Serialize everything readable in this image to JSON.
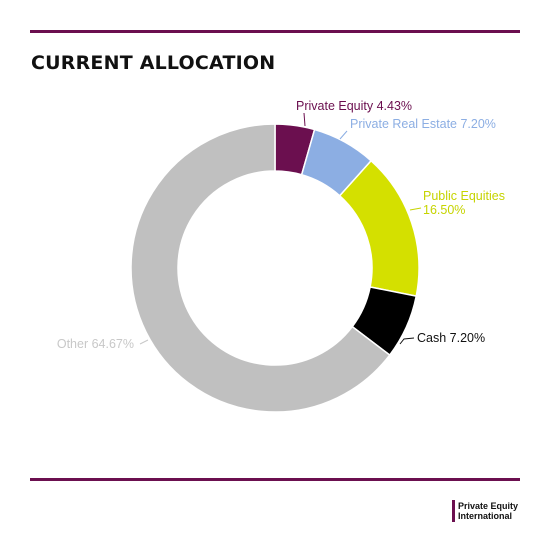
{
  "page": {
    "title": "CURRENT ALLOCATION"
  },
  "logo": {
    "line1": "Private Equity",
    "line2": "International"
  },
  "chart_data": {
    "type": "pie",
    "variant": "donut",
    "title": "CURRENT ALLOCATION",
    "slices": [
      {
        "name": "Private Equity",
        "value": 4.43,
        "label": "Private Equity 4.43%",
        "color": "#6b0f4f",
        "label_color": "#6b0f4f"
      },
      {
        "name": "Private Real Estate",
        "value": 7.2,
        "label": "Private Real Estate 7.20%",
        "color": "#8caee3",
        "label_color": "#8caee3"
      },
      {
        "name": "Public Equities",
        "value": 16.5,
        "label": "Public Equities\n16.50%",
        "color": "#d4e000",
        "label_color": "#c6d400"
      },
      {
        "name": "Cash",
        "value": 7.2,
        "label": "Cash 7.20%",
        "color": "#000000",
        "label_color": "#111111"
      },
      {
        "name": "Other",
        "value": 64.67,
        "label": "Other 64.67%",
        "color": "#c0c0c0",
        "label_color": "#c8c8c8"
      }
    ]
  }
}
